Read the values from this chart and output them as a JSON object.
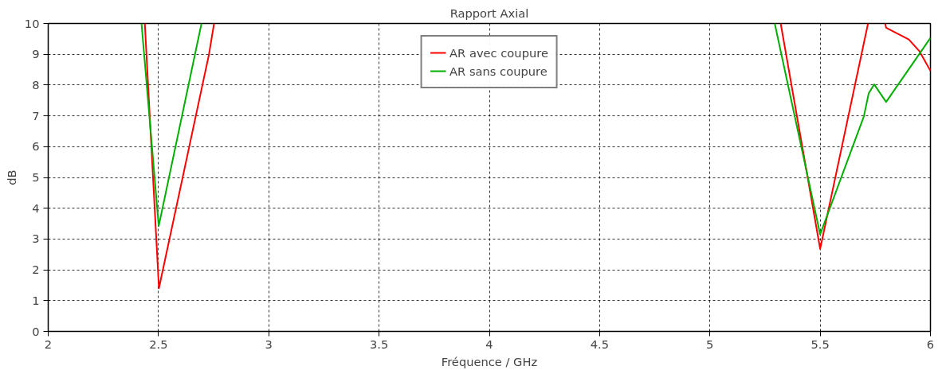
{
  "chart_data": {
    "type": "line",
    "title": "Rapport Axial",
    "xlabel": "Fréquence / GHz",
    "ylabel": "dB",
    "xlim": [
      2,
      6
    ],
    "ylim": [
      0,
      10
    ],
    "xticks": [
      2,
      2.5,
      3,
      3.5,
      4,
      4.5,
      5,
      5.5,
      6
    ],
    "yticks": [
      0,
      1,
      2,
      3,
      4,
      5,
      6,
      7,
      8,
      9,
      10
    ],
    "grid": true,
    "legend": "top",
    "line_style": "solid",
    "marker": "none",
    "series": [
      {
        "name": "AR avec coupure",
        "color": "#ff0000",
        "x": [
          2.438,
          2.502,
          2.729,
          2.752,
          4.0,
          5.321,
          5.5,
          5.717,
          5.75,
          5.795,
          5.799,
          5.902,
          5.95,
          6.0
        ],
        "values": [
          10,
          1.4,
          9.0,
          10,
          null,
          10,
          2.68,
          10,
          null,
          10,
          9.86,
          9.48,
          9.1,
          8.46
        ]
      },
      {
        "name": "AR sans coupure",
        "color": "#00b000",
        "x": [
          2.423,
          2.501,
          2.695,
          4.0,
          5.294,
          5.5,
          5.698,
          5.72,
          5.745,
          5.799,
          6.0
        ],
        "values": [
          10,
          3.42,
          10,
          null,
          10,
          3.15,
          6.98,
          7.73,
          8.02,
          7.45,
          9.53
        ]
      }
    ]
  }
}
